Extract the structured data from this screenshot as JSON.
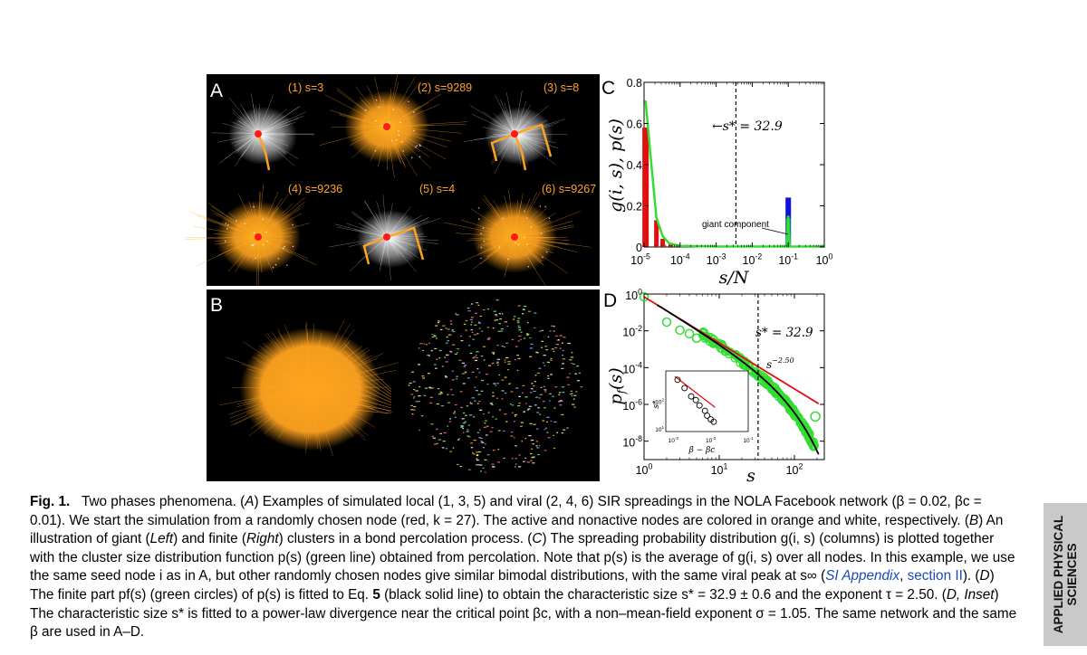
{
  "figure": {
    "panelA": {
      "letter": "A",
      "cells": [
        {
          "label": "(1) s=3",
          "type": "local"
        },
        {
          "label": "(2) s=9289",
          "type": "viral"
        },
        {
          "label": "(3) s=8",
          "type": "local"
        },
        {
          "label": "(4) s=9236",
          "type": "viral"
        },
        {
          "label": "(5) s=4",
          "type": "local"
        },
        {
          "label": "(6) s=9267",
          "type": "viral"
        }
      ]
    },
    "panelB": {
      "letter": "B"
    },
    "colors": {
      "active_node": "#ffa31f",
      "inactive_node": "#ffffff",
      "seed_node": "#ff1a1a",
      "background": "#000000"
    }
  },
  "chart_data": [
    {
      "panel": "C",
      "type": "bar",
      "xlabel": "s/N",
      "ylabel": "g(i, s), p(s)",
      "x_scale": "log",
      "xlim": [
        1e-05,
        1
      ],
      "ylim": [
        0,
        0.8
      ],
      "xtick_labels": [
        {
          "base": "10",
          "exp": "-5"
        },
        {
          "base": "10",
          "exp": "-4"
        },
        {
          "base": "10",
          "exp": "-3"
        },
        {
          "base": "10",
          "exp": "-2"
        },
        {
          "base": "10",
          "exp": "-1"
        },
        {
          "base": "10",
          "exp": "0"
        }
      ],
      "ytick_labels": [
        "0",
        "0.2",
        "0.4",
        "0.6",
        "0.8"
      ],
      "bars_red": [
        {
          "x": 1.1e-05,
          "value": 0.58
        },
        {
          "x": 2.2e-05,
          "value": 0.13
        },
        {
          "x": 3.3e-05,
          "value": 0.04
        },
        {
          "x": 5.5e-05,
          "value": 0.02
        },
        {
          "x": 0.00015,
          "value": 0.01
        },
        {
          "x": 0.1,
          "value": 0.14
        }
      ],
      "bar_blue": {
        "x": 0.1,
        "value": 0.24
      },
      "p_s_line": [
        {
          "x": 1.1e-05,
          "y": 0.71
        },
        {
          "x": 1.5e-05,
          "y": 0.45
        },
        {
          "x": 2.2e-05,
          "y": 0.14
        },
        {
          "x": 3.3e-05,
          "y": 0.05
        },
        {
          "x": 5e-05,
          "y": 0.015
        },
        {
          "x": 0.0001,
          "y": 0.003
        },
        {
          "x": 0.001,
          "y": 0.0
        },
        {
          "x": 0.09,
          "y": 0.0
        },
        {
          "x": 0.1,
          "y": 0.15
        },
        {
          "x": 0.11,
          "y": 0.0
        },
        {
          "x": 1.0,
          "y": 0.0
        }
      ],
      "s_star_line_x": 0.00354,
      "s_star_label": "s* = 32.9",
      "annotation": "giant component"
    },
    {
      "panel": "D",
      "type": "scatter",
      "xlabel": "s",
      "ylabel": "p_f(s)",
      "x_scale": "log",
      "y_scale": "log",
      "xlim": [
        1,
        250
      ],
      "ylim": [
        1e-09,
        1
      ],
      "xtick_labels": [
        {
          "base": "10",
          "exp": "0"
        },
        {
          "base": "10",
          "exp": "1"
        },
        {
          "base": "10",
          "exp": "2"
        }
      ],
      "ytick_labels": [
        {
          "base": "10",
          "exp": "0"
        },
        {
          "base": "10",
          "exp": "-2"
        },
        {
          "base": "10",
          "exp": "-4"
        },
        {
          "base": "10",
          "exp": "-6"
        },
        {
          "base": "10",
          "exp": "-8"
        }
      ],
      "power_law_label": {
        "base": "s",
        "exp": "−2.50"
      },
      "s_star_label": "s* = 32.9",
      "s_star_line_x": 32.9,
      "power_law_exponent": -2.5,
      "power_law_prefactor": 0.7,
      "fit_cutoff": 32.9,
      "green_circles": [
        {
          "x": 1,
          "y": 0.7
        },
        {
          "x": 2,
          "y": 0.03
        },
        {
          "x": 3,
          "y": 0.011
        },
        {
          "x": 4,
          "y": 0.007
        },
        {
          "x": 5,
          "y": 0.004
        }
      ],
      "inset": {
        "xlabel": "β − βc",
        "ylabel": "s*",
        "xtick_labels": [
          {
            "base": "10",
            "exp": "-3"
          },
          {
            "base": "10",
            "exp": "-2"
          },
          {
            "base": "10",
            "exp": "-1"
          }
        ],
        "ytick_labels": [
          {
            "base": "10",
            "exp": "2"
          },
          {
            "base": "10",
            "exp": "1"
          }
        ],
        "points": [
          {
            "x": 0.0013,
            "y": 600
          },
          {
            "x": 0.002,
            "y": 300
          },
          {
            "x": 0.003,
            "y": 150
          },
          {
            "x": 0.004,
            "y": 110
          },
          {
            "x": 0.005,
            "y": 70
          },
          {
            "x": 0.007,
            "y": 45
          },
          {
            "x": 0.008,
            "y": 30
          },
          {
            "x": 0.01,
            "y": 22
          },
          {
            "x": 0.012,
            "y": 18
          }
        ],
        "fit_exponent": -1.05
      }
    }
  ],
  "caption": {
    "label": "Fig. 1.",
    "title": "Two phases phenomena.",
    "parts": [
      {
        "t": " (",
        "s": ""
      },
      {
        "t": "A",
        "s": "i"
      },
      {
        "t": ") Examples of simulated local (1, 3, 5) and viral (2, 4, 6) SIR spreadings in the NOLA Facebook network (β = 0.02, βc = 0.01). We start the simulation from a randomly chosen node (red, k = 27). The active and nonactive nodes are colored in orange and white, respectively. (",
        "s": ""
      },
      {
        "t": "B",
        "s": "i"
      },
      {
        "t": ") An illustration of giant (",
        "s": ""
      },
      {
        "t": "Left",
        "s": "i"
      },
      {
        "t": ") and finite (",
        "s": ""
      },
      {
        "t": "Right",
        "s": "i"
      },
      {
        "t": ") clusters in a bond percolation process. (",
        "s": ""
      },
      {
        "t": "C",
        "s": "i"
      },
      {
        "t": ") The spreading probability distribution g(i, s) (columns) is plotted together with the cluster size distribution function p(s) (green line) obtained from percolation. Note that p(s) is the average of g(i, s) over all nodes. In this example, we use the same seed node i as in A, but other randomly chosen nodes give similar bimodal distributions, with the same viral peak at s∞ (",
        "s": ""
      },
      {
        "t": "SI Appendix",
        "s": "link"
      },
      {
        "t": ", ",
        "s": ""
      },
      {
        "t": "section II",
        "s": "linkr"
      },
      {
        "t": "). (",
        "s": ""
      },
      {
        "t": "D",
        "s": "i"
      },
      {
        "t": ") The finite part pf(s) (green circles) of p(s) is fitted to Eq. ",
        "s": ""
      },
      {
        "t": "5",
        "s": "b"
      },
      {
        "t": " (black solid line) to obtain the characteristic size s* = 32.9 ± 0.6 and the exponent τ = 2.50. (",
        "s": ""
      },
      {
        "t": "D, Inset",
        "s": "i"
      },
      {
        "t": ") The characteristic size s* is fitted to a power-law divergence near the critical point βc, with a non–mean-field exponent σ = 1.05. The same network and the same β are used in A–D.",
        "s": ""
      }
    ]
  },
  "sidebar": {
    "line1": "APPLIED PHYSICAL",
    "line2": "SCIENCES"
  }
}
